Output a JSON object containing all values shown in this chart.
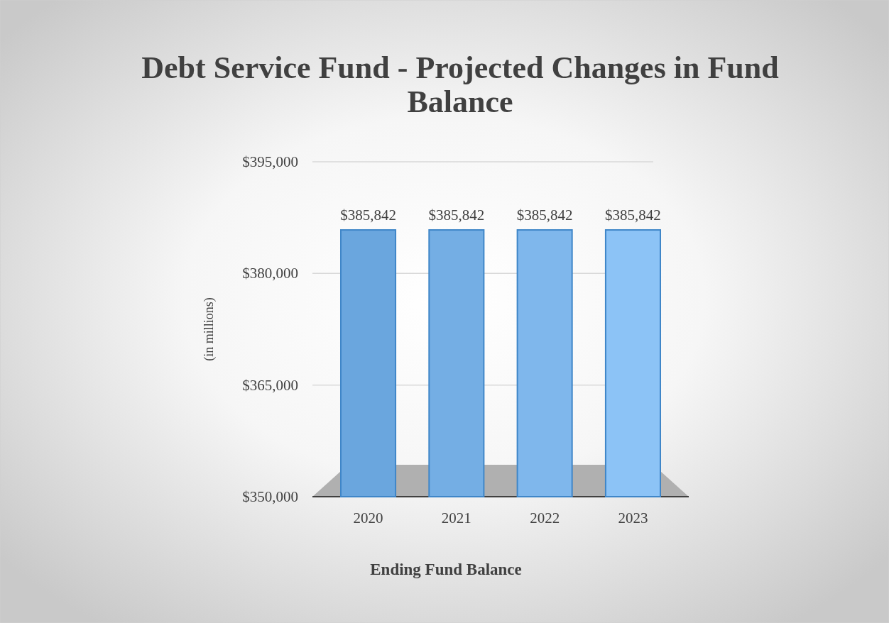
{
  "chart_data": {
    "type": "bar",
    "title": "Debt Service Fund - Projected Changes in Fund Balance",
    "xlabel": "Ending Fund Balance",
    "ylabel": "(in millions)",
    "categories": [
      "2020",
      "2021",
      "2022",
      "2023"
    ],
    "values": [
      385842,
      385842,
      385842,
      385842
    ],
    "colors": [
      "#6aa6de",
      "#74aee4",
      "#7fb7ec",
      "#8cc3f6"
    ],
    "value_labels": [
      "$385,842",
      "$385,842",
      "$385,842",
      "$385,842"
    ],
    "ylim": [
      350000,
      395000
    ],
    "yticks": [
      {
        "value": 350000,
        "label": "$350,000"
      },
      {
        "value": 365000,
        "label": "$365,000"
      },
      {
        "value": 380000,
        "label": "$380,000"
      },
      {
        "value": 395000,
        "label": "$395,000"
      }
    ],
    "grid": "y"
  }
}
